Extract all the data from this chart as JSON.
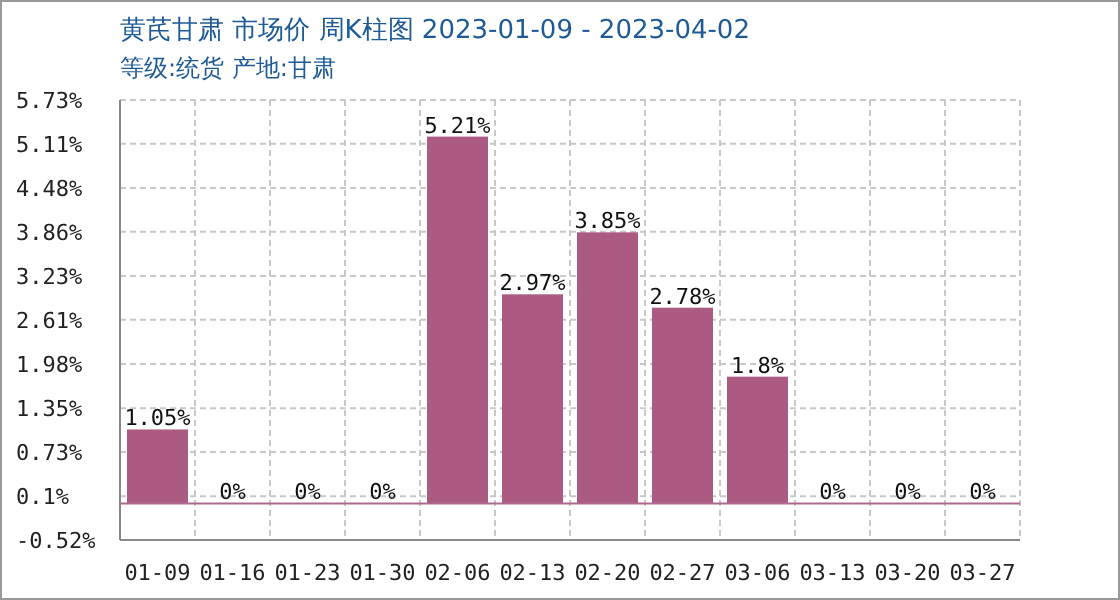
{
  "chart_data": {
    "type": "bar",
    "title": "黄芪甘肃 市场价 周K柱图 2023-01-09 - 2023-04-02",
    "subtitle": "等级:统货 产地:甘肃",
    "categories": [
      "01-09",
      "01-16",
      "01-23",
      "01-30",
      "02-06",
      "02-13",
      "02-20",
      "02-27",
      "03-06",
      "03-13",
      "03-20",
      "03-27"
    ],
    "values": [
      1.05,
      0,
      0,
      0,
      5.21,
      2.97,
      3.85,
      2.78,
      1.8,
      0,
      0,
      0
    ],
    "value_labels": [
      "1.05%",
      "0%",
      "0%",
      "0%",
      "5.21%",
      "2.97%",
      "3.85%",
      "2.78%",
      "1.8%",
      "0%",
      "0%",
      "0%"
    ],
    "color": "#ab5a82",
    "ylim": [
      -0.52,
      5.73
    ],
    "yticks": [
      {
        "value": -0.52,
        "label": "-0.52%"
      },
      {
        "value": 0.1,
        "label": "0.1%"
      },
      {
        "value": 0.73,
        "label": "0.73%"
      },
      {
        "value": 1.35,
        "label": "1.35%"
      },
      {
        "value": 1.98,
        "label": "1.98%"
      },
      {
        "value": 2.61,
        "label": "2.61%"
      },
      {
        "value": 3.23,
        "label": "3.23%"
      },
      {
        "value": 3.86,
        "label": "3.86%"
      },
      {
        "value": 4.48,
        "label": "4.48%"
      },
      {
        "value": 5.11,
        "label": "5.11%"
      },
      {
        "value": 5.73,
        "label": "5.73%"
      }
    ],
    "ref_lines": [
      {
        "axis": "y",
        "value": 0,
        "color": "#b06890",
        "line_style": "solid"
      }
    ],
    "grid": true
  }
}
